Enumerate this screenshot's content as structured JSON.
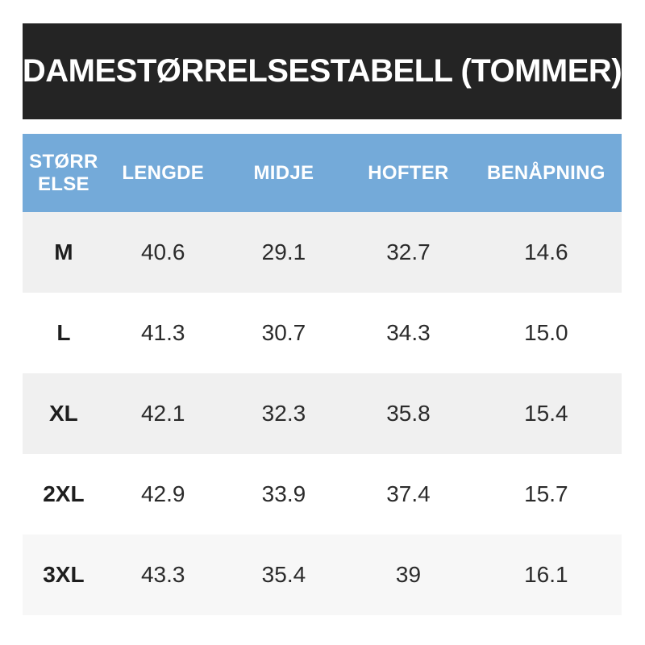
{
  "title": "DAMESTØRRELSESTABELL (TOMMER)",
  "table": {
    "columns": [
      "STØRR\nELSE",
      "LENGDE",
      "MIDJE",
      "HOFTER",
      "BENÅPNING"
    ],
    "rows": [
      {
        "size": "M",
        "values": [
          "40.6",
          "29.1",
          "32.7",
          "14.6"
        ]
      },
      {
        "size": "L",
        "values": [
          "41.3",
          "30.7",
          "34.3",
          "15.0"
        ]
      },
      {
        "size": "XL",
        "values": [
          "42.1",
          "32.3",
          "35.8",
          "15.4"
        ]
      },
      {
        "size": "2XL",
        "values": [
          "42.9",
          "33.9",
          "37.4",
          "15.7"
        ]
      },
      {
        "size": "3XL",
        "values": [
          "43.3",
          "35.4",
          "39",
          "16.1"
        ]
      }
    ]
  },
  "colors": {
    "banner_bg": "#242424",
    "banner_text": "#ffffff",
    "header_bg": "#74aad9",
    "header_text": "#ffffff",
    "row_alt_bg": "#f0f0f0",
    "row_alt_last_bg": "#f7f7f7",
    "row_bg": "#ffffff",
    "cell_text": "#2b2b2b"
  }
}
